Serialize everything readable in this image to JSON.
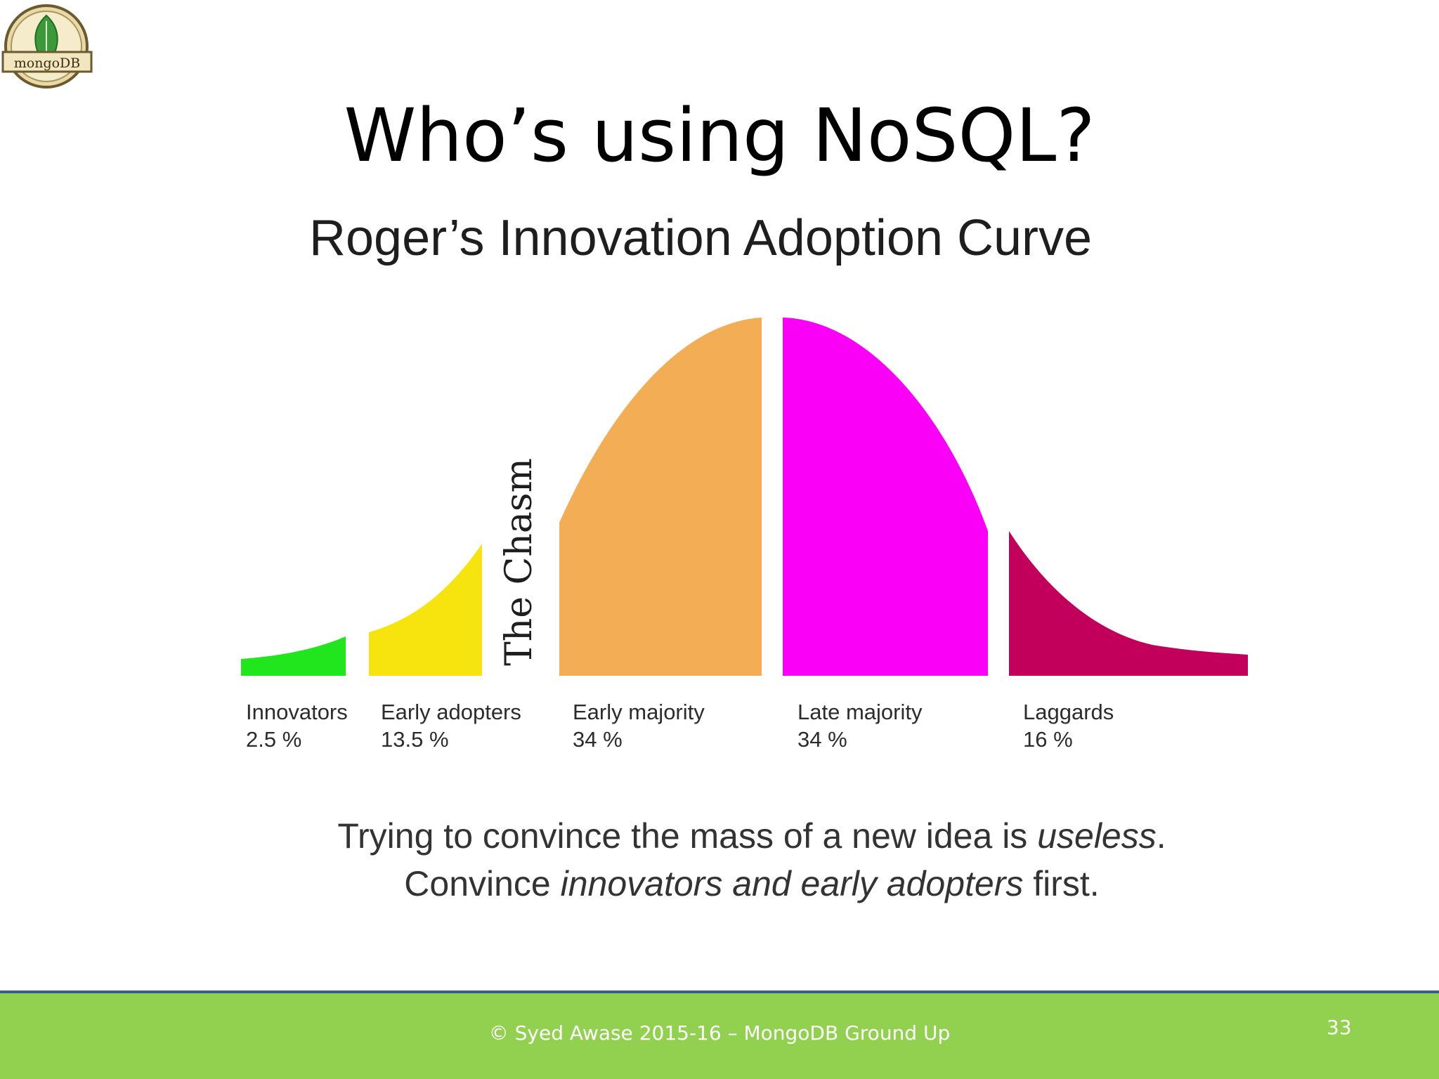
{
  "slide": {
    "logo_text": "mongoDB",
    "title": "Who’s using NoSQL?"
  },
  "chart_data": {
    "type": "area",
    "title": "Roger’s Innovation Adoption Curve",
    "gap_label": "The Chasm",
    "segments": [
      {
        "name": "Innovators",
        "percent_label": "2.5 %",
        "value": 2.5,
        "color": "#21e61d"
      },
      {
        "name": "Early adopters",
        "percent_label": "13.5 %",
        "value": 13.5,
        "color": "#f7e40f"
      },
      {
        "name": "Early majority",
        "percent_label": "34 %",
        "value": 34,
        "color": "#f2ad55"
      },
      {
        "name": "Late majority",
        "percent_label": "34 %",
        "value": 34,
        "color": "#fa00f6"
      },
      {
        "name": "Laggards",
        "percent_label": "16 %",
        "value": 16,
        "color": "#c2005b"
      }
    ],
    "caption": {
      "line1_a": "Trying to convince the mass of a new idea is ",
      "line1_b": "useless",
      "line1_c": ".",
      "line2_a": "Convince ",
      "line2_b": "innovators and early adopters",
      "line2_c": " first."
    }
  },
  "footer": {
    "text": "© Syed Awase 2015-16 – MongoDB Ground Up",
    "page_number": "33",
    "background": "#92d050"
  }
}
